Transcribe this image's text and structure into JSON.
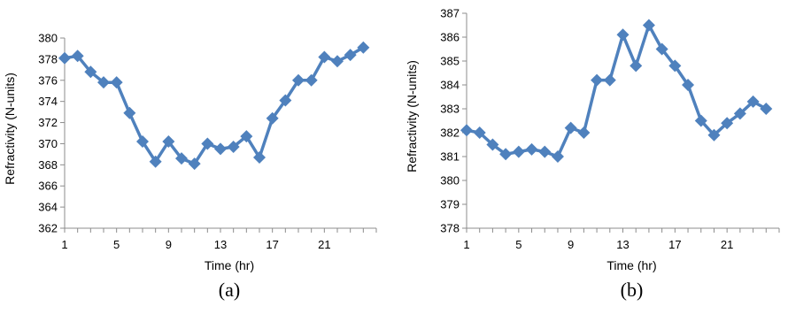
{
  "colors": {
    "series": "#4F81BD",
    "axis": "#8C8C8C"
  },
  "chart_data": [
    {
      "type": "line",
      "panel_label": "(a)",
      "xlabel": "Time (hr)",
      "ylabel": "Refractivity (N-units)",
      "xlim": [
        1,
        25
      ],
      "ylim": [
        362,
        380
      ],
      "x_ticks": [
        1,
        5,
        9,
        13,
        17,
        21
      ],
      "y_ticks": [
        362,
        364,
        366,
        368,
        370,
        372,
        374,
        376,
        378,
        380
      ],
      "marker": "diamond",
      "series": [
        {
          "x": [
            1,
            2,
            3,
            4,
            5,
            6,
            7,
            8,
            9,
            10,
            11,
            12,
            13,
            14,
            15,
            16,
            17,
            18,
            19,
            20,
            21,
            22,
            23,
            24
          ],
          "values": [
            378.1,
            378.3,
            376.8,
            375.8,
            375.8,
            372.9,
            370.2,
            368.3,
            370.2,
            368.6,
            368.1,
            370.0,
            369.5,
            369.7,
            370.7,
            368.7,
            372.4,
            374.1,
            376.0,
            376.0,
            378.2,
            377.8,
            378.4,
            379.1
          ]
        }
      ]
    },
    {
      "type": "line",
      "panel_label": "(b)",
      "xlabel": "Time (hr)",
      "ylabel": "Refractivity (N-units)",
      "xlim": [
        1,
        25
      ],
      "ylim": [
        378,
        387
      ],
      "x_ticks": [
        1,
        5,
        9,
        13,
        17,
        21
      ],
      "y_ticks": [
        378,
        379,
        380,
        381,
        382,
        383,
        384,
        385,
        386,
        387
      ],
      "marker": "diamond",
      "series": [
        {
          "x": [
            1,
            2,
            3,
            4,
            5,
            6,
            7,
            8,
            9,
            10,
            11,
            12,
            13,
            14,
            15,
            16,
            17,
            18,
            19,
            20,
            21,
            22,
            23,
            24
          ],
          "values": [
            382.1,
            382.0,
            381.5,
            381.1,
            381.2,
            381.3,
            381.2,
            381.0,
            382.2,
            382.0,
            384.2,
            384.2,
            386.1,
            384.8,
            386.5,
            385.5,
            384.8,
            384.0,
            382.5,
            381.9,
            382.4,
            382.8,
            383.3,
            383.0
          ]
        }
      ]
    }
  ]
}
